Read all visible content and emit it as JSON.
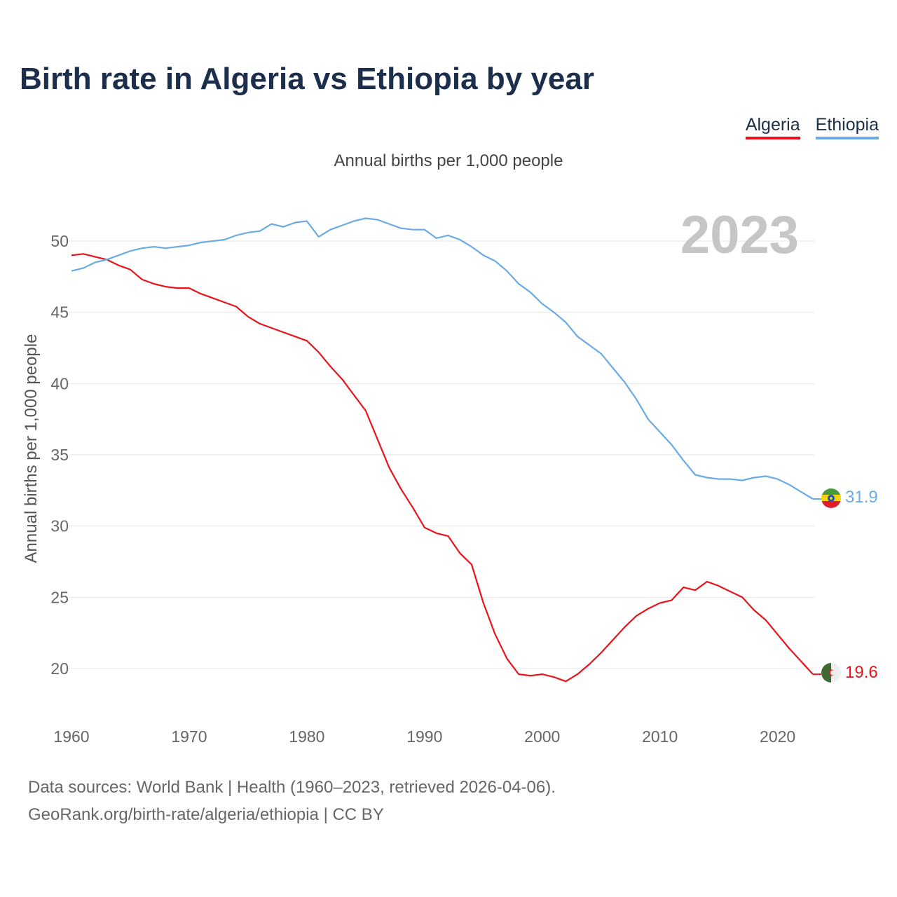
{
  "title": "Birth rate in Algeria vs Ethiopia by year",
  "legend": {
    "algeria": "Algeria",
    "ethiopia": "Ethiopia"
  },
  "subtitle": "Annual births per 1,000 people",
  "footer": {
    "line1": "Data sources: World Bank | Health (1960–2023, retrieved 2026-04-06).",
    "line2": "GeoRank.org/birth-rate/algeria/ethiopia | CC BY"
  },
  "colors": {
    "algeria": "#e8141b",
    "ethiopia": "#6aabe6",
    "grid": "#e6e6e6",
    "year": "#c6c6c6",
    "axis_text": "#666666"
  },
  "chart_data": {
    "type": "line",
    "title": "Birth rate in Algeria vs Ethiopia by year",
    "ylabel": "Annual births per 1,000 people",
    "xlabel": "",
    "year_label": "2023",
    "xlim": [
      1960,
      2023
    ],
    "ylim": [
      16.5,
      53
    ],
    "x_ticks": [
      1960,
      1970,
      1980,
      1990,
      2000,
      2010,
      2020
    ],
    "y_ticks": [
      20,
      25,
      30,
      35,
      40,
      45,
      50
    ],
    "grid": true,
    "x": [
      1960,
      1961,
      1962,
      1963,
      1964,
      1965,
      1966,
      1967,
      1968,
      1969,
      1970,
      1971,
      1972,
      1973,
      1974,
      1975,
      1976,
      1977,
      1978,
      1979,
      1980,
      1981,
      1982,
      1983,
      1984,
      1985,
      1986,
      1987,
      1988,
      1989,
      1990,
      1991,
      1992,
      1993,
      1994,
      1995,
      1996,
      1997,
      1998,
      1999,
      2000,
      2001,
      2002,
      2003,
      2004,
      2005,
      2006,
      2007,
      2008,
      2009,
      2010,
      2011,
      2012,
      2013,
      2014,
      2015,
      2016,
      2017,
      2018,
      2019,
      2020,
      2021,
      2022,
      2023
    ],
    "series": [
      {
        "name": "Algeria",
        "color": "#e8141b",
        "end_label": "19.6",
        "values": [
          49.0,
          49.1,
          48.9,
          48.7,
          48.3,
          48.0,
          47.3,
          47.0,
          46.8,
          46.7,
          46.7,
          46.3,
          46.0,
          45.7,
          45.4,
          44.7,
          44.2,
          43.9,
          43.6,
          43.3,
          43.0,
          42.2,
          41.2,
          40.3,
          39.2,
          38.1,
          36.1,
          34.1,
          32.6,
          31.3,
          29.9,
          29.5,
          29.3,
          28.1,
          27.3,
          24.6,
          22.4,
          20.7,
          19.6,
          19.5,
          19.6,
          19.4,
          19.1,
          19.6,
          20.3,
          21.1,
          22.0,
          22.9,
          23.7,
          24.2,
          24.6,
          24.8,
          25.7,
          25.5,
          26.1,
          25.8,
          25.4,
          25.0,
          24.1,
          23.4,
          22.4,
          21.4,
          20.5,
          19.6
        ]
      },
      {
        "name": "Ethiopia",
        "color": "#6aabe6",
        "end_label": "31.9",
        "values": [
          47.9,
          48.1,
          48.5,
          48.7,
          49.0,
          49.3,
          49.5,
          49.6,
          49.5,
          49.6,
          49.7,
          49.9,
          50.0,
          50.1,
          50.4,
          50.6,
          50.7,
          51.2,
          51.0,
          51.3,
          51.4,
          50.3,
          50.8,
          51.1,
          51.4,
          51.6,
          51.5,
          51.2,
          50.9,
          50.8,
          50.8,
          50.2,
          50.4,
          50.1,
          49.6,
          49.0,
          48.6,
          47.9,
          47.0,
          46.4,
          45.6,
          45.0,
          44.3,
          43.3,
          42.7,
          42.1,
          41.1,
          40.1,
          38.9,
          37.5,
          36.6,
          35.7,
          34.6,
          33.6,
          33.4,
          33.3,
          33.3,
          33.2,
          33.4,
          33.5,
          33.3,
          32.9,
          32.4,
          31.9
        ]
      }
    ]
  }
}
